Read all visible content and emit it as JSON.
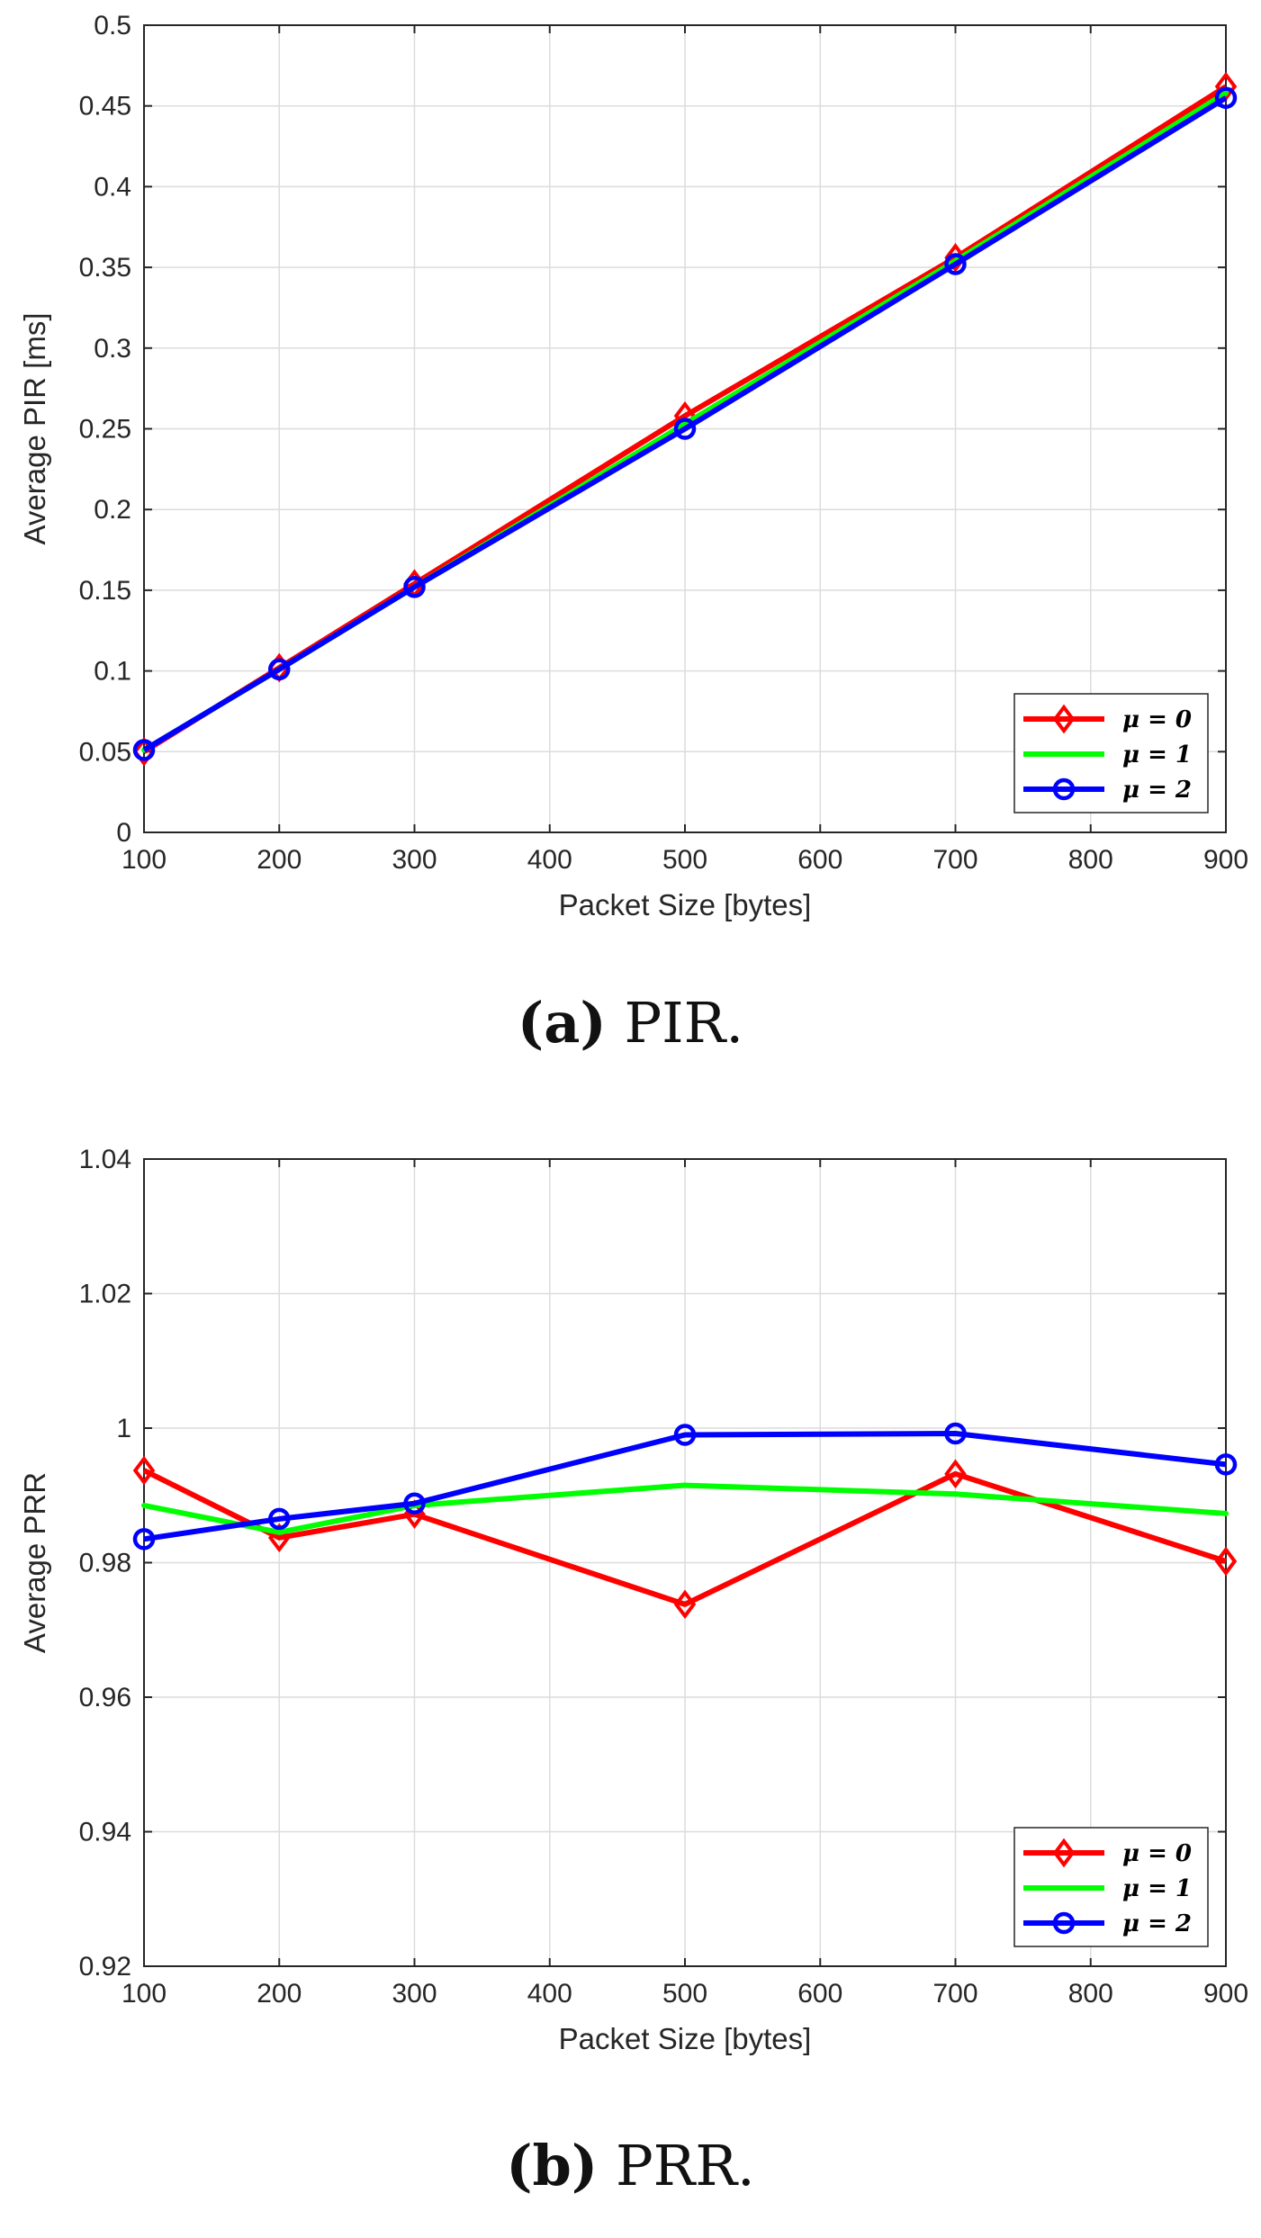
{
  "chart_data": [
    {
      "type": "line",
      "title": "",
      "xlabel": "Packet Size [bytes]",
      "ylabel": "Average PIR [ms]",
      "x": [
        100,
        200,
        300,
        500,
        700,
        900
      ],
      "xlim": [
        100,
        900
      ],
      "ylim": [
        0,
        0.5
      ],
      "xticks": [
        100,
        200,
        300,
        400,
        500,
        600,
        700,
        800,
        900
      ],
      "yticks": [
        0,
        0.05,
        0.1,
        0.15,
        0.2,
        0.25,
        0.3,
        0.35,
        0.4,
        0.45,
        0.5
      ],
      "xtick_labels": [
        "100",
        "200",
        "300",
        "400",
        "500",
        "600",
        "700",
        "800",
        "900"
      ],
      "ytick_labels": [
        "0",
        "0.05",
        "0.1",
        "0.15",
        "0.2",
        "0.25",
        "0.3",
        "0.35",
        "0.4",
        "0.45",
        "0.5"
      ],
      "grid": true,
      "legend_position": "bottom-right",
      "series": [
        {
          "name": "μ = 0",
          "color": "#ff0000",
          "marker": "diamond",
          "values": [
            0.05,
            0.102,
            0.154,
            0.258,
            0.356,
            0.462
          ]
        },
        {
          "name": "μ = 1",
          "color": "#00ff00",
          "marker": "point",
          "values": [
            0.051,
            0.101,
            0.152,
            0.253,
            0.354,
            0.458
          ]
        },
        {
          "name": "μ = 2",
          "color": "#0000ff",
          "marker": "circle",
          "values": [
            0.051,
            0.101,
            0.152,
            0.25,
            0.352,
            0.455
          ]
        }
      ],
      "caption_letter": "(a)",
      "caption_text": "PIR."
    },
    {
      "type": "line",
      "title": "",
      "xlabel": "Packet Size [bytes]",
      "ylabel": "Average PRR",
      "x": [
        100,
        200,
        300,
        500,
        700,
        900
      ],
      "xlim": [
        100,
        900
      ],
      "ylim": [
        0.92,
        1.04
      ],
      "xticks": [
        100,
        200,
        300,
        400,
        500,
        600,
        700,
        800,
        900
      ],
      "yticks": [
        0.92,
        0.94,
        0.96,
        0.98,
        1.0,
        1.02,
        1.04
      ],
      "xtick_labels": [
        "100",
        "200",
        "300",
        "400",
        "500",
        "600",
        "700",
        "800",
        "900"
      ],
      "ytick_labels": [
        "0.92",
        "0.94",
        "0.96",
        "0.98",
        "1",
        "1.02",
        "1.04"
      ],
      "grid": true,
      "legend_position": "bottom-right",
      "series": [
        {
          "name": "μ = 0",
          "color": "#ff0000",
          "marker": "diamond",
          "values": [
            0.9937,
            0.9837,
            0.9872,
            0.9738,
            0.9932,
            0.9802
          ]
        },
        {
          "name": "μ = 1",
          "color": "#00ff00",
          "marker": "point",
          "values": [
            0.9885,
            0.9845,
            0.9885,
            0.9915,
            0.9902,
            0.9873
          ]
        },
        {
          "name": "μ = 2",
          "color": "#0000ff",
          "marker": "circle",
          "values": [
            0.9835,
            0.9865,
            0.9888,
            0.999,
            0.9992,
            0.9946
          ]
        }
      ],
      "caption_letter": "(b)",
      "caption_text": "PRR."
    }
  ]
}
